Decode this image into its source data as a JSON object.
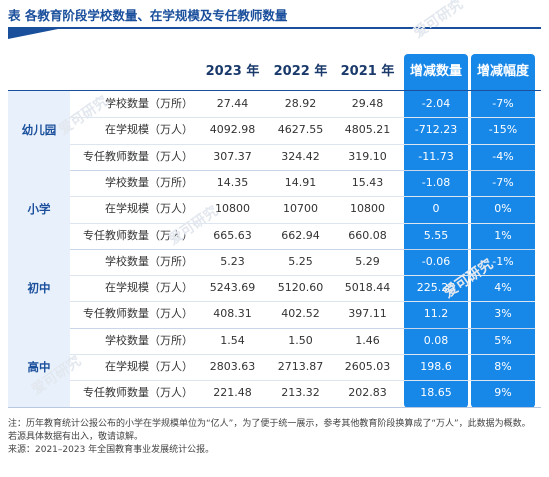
{
  "title": "表  各教育阶段学校数量、在学规模及专任教师数量",
  "columns": {
    "y2023": "2023 年",
    "y2022": "2022 年",
    "y2021": "2021 年",
    "change": "增减数量",
    "rate": "增减幅度"
  },
  "groups": [
    {
      "name": "幼儿园",
      "rows": [
        {
          "label": "学校数量（万所）",
          "v2023": "27.44",
          "v2022": "28.92",
          "v2021": "29.48",
          "change": "-2.04",
          "rate": "-7%"
        },
        {
          "label": "在学规模（万人）",
          "v2023": "4092.98",
          "v2022": "4627.55",
          "v2021": "4805.21",
          "change": "-712.23",
          "rate": "-15%"
        },
        {
          "label": "专任教师数量（万人）",
          "v2023": "307.37",
          "v2022": "324.42",
          "v2021": "319.10",
          "change": "-11.73",
          "rate": "-4%"
        }
      ]
    },
    {
      "name": "小学",
      "rows": [
        {
          "label": "学校数量（万所）",
          "v2023": "14.35",
          "v2022": "14.91",
          "v2021": "15.43",
          "change": "-1.08",
          "rate": "-7%"
        },
        {
          "label": "在学规模（万人）",
          "v2023": "10800",
          "v2022": "10700",
          "v2021": "10800",
          "change": "0",
          "rate": "0%"
        },
        {
          "label": "专任教师数量（万人）",
          "v2023": "665.63",
          "v2022": "662.94",
          "v2021": "660.08",
          "change": "5.55",
          "rate": "1%"
        }
      ]
    },
    {
      "name": "初中",
      "rows": [
        {
          "label": "学校数量（万所）",
          "v2023": "5.23",
          "v2022": "5.25",
          "v2021": "5.29",
          "change": "-0.06",
          "rate": "-1%"
        },
        {
          "label": "在学规模（万人）",
          "v2023": "5243.69",
          "v2022": "5120.60",
          "v2021": "5018.44",
          "change": "225.25",
          "rate": "4%"
        },
        {
          "label": "专任教师数量（万人）",
          "v2023": "408.31",
          "v2022": "402.52",
          "v2021": "397.11",
          "change": "11.2",
          "rate": "3%"
        }
      ]
    },
    {
      "name": "高中",
      "rows": [
        {
          "label": "学校数量（万所）",
          "v2023": "1.54",
          "v2022": "1.50",
          "v2021": "1.46",
          "change": "0.08",
          "rate": "5%"
        },
        {
          "label": "在学规模（万人）",
          "v2023": "2803.63",
          "v2022": "2713.87",
          "v2021": "2605.03",
          "change": "198.6",
          "rate": "8%"
        },
        {
          "label": "专任教师数量（万人）",
          "v2023": "221.48",
          "v2022": "213.32",
          "v2021": "202.83",
          "change": "18.65",
          "rate": "9%"
        }
      ]
    }
  ],
  "note_line1": "注：历年教育统计公报公布的小学在学规模单位为“亿人”，为了便于统一展示，参考其他教育阶段换算成了“万人”，此数据为概数。若源具体数据有出入，敬请谅解。",
  "note_line2": "来源：2021–2023 年全国教育事业发展统计公报。",
  "watermark": "爱可研究",
  "colors": {
    "accent": "#1a4f9c",
    "highlight": "#1787e8"
  }
}
